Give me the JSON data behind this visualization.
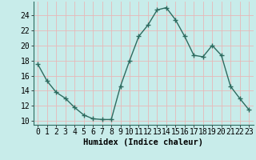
{
  "x": [
    0,
    1,
    2,
    3,
    4,
    5,
    6,
    7,
    8,
    9,
    10,
    11,
    12,
    13,
    14,
    15,
    16,
    17,
    18,
    19,
    20,
    21,
    22,
    23
  ],
  "y": [
    17.5,
    15.3,
    13.8,
    13.0,
    11.8,
    10.8,
    10.3,
    10.2,
    10.2,
    14.6,
    18.0,
    21.2,
    22.7,
    24.7,
    25.0,
    23.4,
    21.2,
    18.7,
    18.5,
    20.0,
    18.7,
    14.6,
    13.0,
    11.5
  ],
  "line_color": "#2d6b5f",
  "marker": "+",
  "bg_color": "#c8ecea",
  "grid_color": "#e8b8b8",
  "xlabel": "Humidex (Indice chaleur)",
  "xlim": [
    -0.5,
    23.5
  ],
  "ylim": [
    9.5,
    25.8
  ],
  "yticks": [
    10,
    12,
    14,
    16,
    18,
    20,
    22,
    24
  ],
  "xticks": [
    0,
    1,
    2,
    3,
    4,
    5,
    6,
    7,
    8,
    9,
    10,
    11,
    12,
    13,
    14,
    15,
    16,
    17,
    18,
    19,
    20,
    21,
    22,
    23
  ],
  "xlabel_fontsize": 7.5,
  "tick_fontsize": 7,
  "linewidth": 1.0,
  "markersize": 4,
  "markeredgewidth": 1.0
}
